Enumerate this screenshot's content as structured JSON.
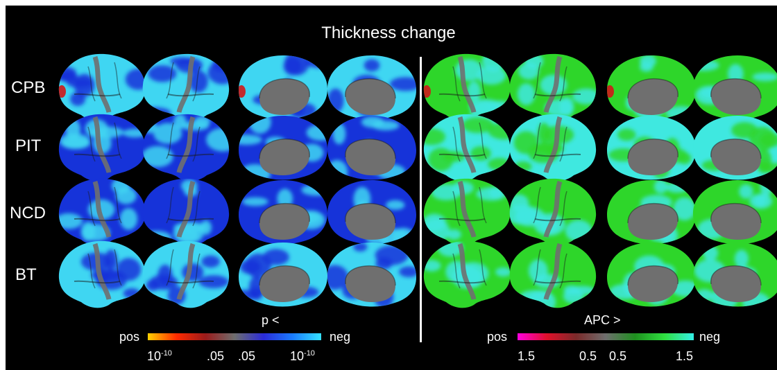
{
  "title": "Thickness change",
  "rows": [
    "CPB",
    "PIT",
    "NCD",
    "BT"
  ],
  "left_colorbar": {
    "label": "p <",
    "end_left": "pos",
    "end_right": "neg",
    "tick1_base": "10",
    "tick1_exp": "-10",
    "tick2": ".05",
    "tick3": ".05",
    "tick4_base": "10",
    "tick4_exp": "-10",
    "colors": [
      "#ffd000",
      "#ff2a00",
      "#9b1b1b",
      "#6e6e6e",
      "#2b2bd8",
      "#1a7bff",
      "#35e2ff"
    ]
  },
  "right_colorbar": {
    "label": "APC >",
    "end_left": "pos",
    "end_right": "neg",
    "tick1": "1.5",
    "tick2": "0.5",
    "tick3": "0.5",
    "tick4": "1.5",
    "colors": [
      "#ff00e0",
      "#e0102a",
      "#7a2a2a",
      "#6e6e6e",
      "#1f8f1f",
      "#2fe040",
      "#33f0e8"
    ]
  },
  "colors": {
    "background": "#000000",
    "brain_gray": "#6f6f6f",
    "p_cyan": "#3fd6f2",
    "p_blue": "#1633d9",
    "apc_green": "#2ed62a",
    "apc_cyan": "#3fe8e0",
    "red_spot": "#d01818"
  }
}
